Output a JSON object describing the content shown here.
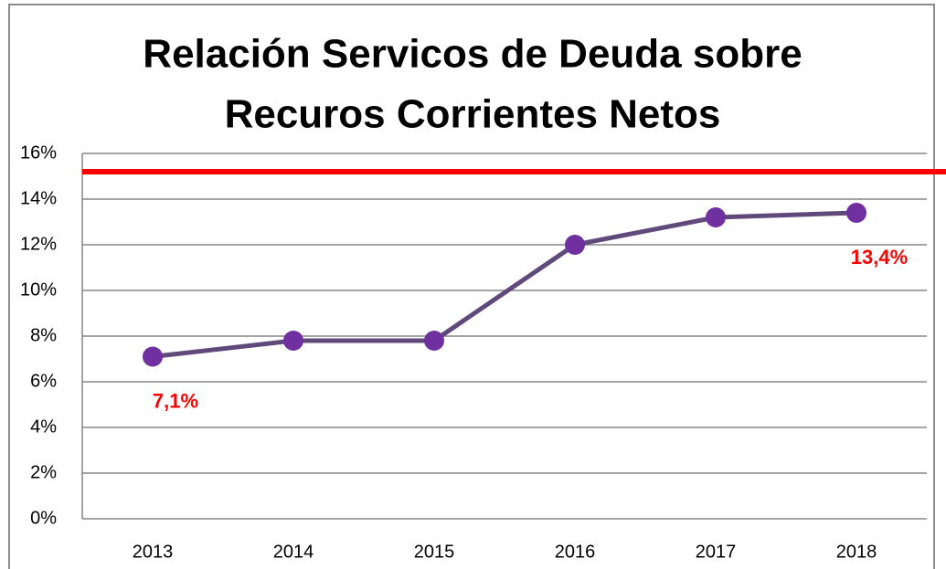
{
  "chart_data": {
    "type": "line",
    "title": [
      "Relación Servicos de Deuda sobre",
      "Recuros Corrientes Netos"
    ],
    "categories": [
      "2013",
      "2014",
      "2015",
      "2016",
      "2017",
      "2018"
    ],
    "series": [
      {
        "color": "#604a7b",
        "marker_color": "#7030a0",
        "values": [
          7.1,
          7.8,
          7.8,
          12.0,
          13.2,
          13.4
        ],
        "value_labels": [
          "7,1%",
          null,
          null,
          null,
          null,
          "13,4%"
        ],
        "value_label_color": "#ff0000"
      }
    ],
    "reference_line": {
      "value": 15.2,
      "color": "#ff0000"
    },
    "ylim": [
      0,
      16
    ],
    "yticks": [
      {
        "value": 0,
        "label": "0%"
      },
      {
        "value": 2,
        "label": "2%"
      },
      {
        "value": 4,
        "label": "4%"
      },
      {
        "value": 6,
        "label": "6%"
      },
      {
        "value": 8,
        "label": "8%"
      },
      {
        "value": 10,
        "label": "10%"
      },
      {
        "value": 12,
        "label": "12%"
      },
      {
        "value": 14,
        "label": "14%"
      },
      {
        "value": 16,
        "label": "16%"
      }
    ],
    "grid": true
  }
}
